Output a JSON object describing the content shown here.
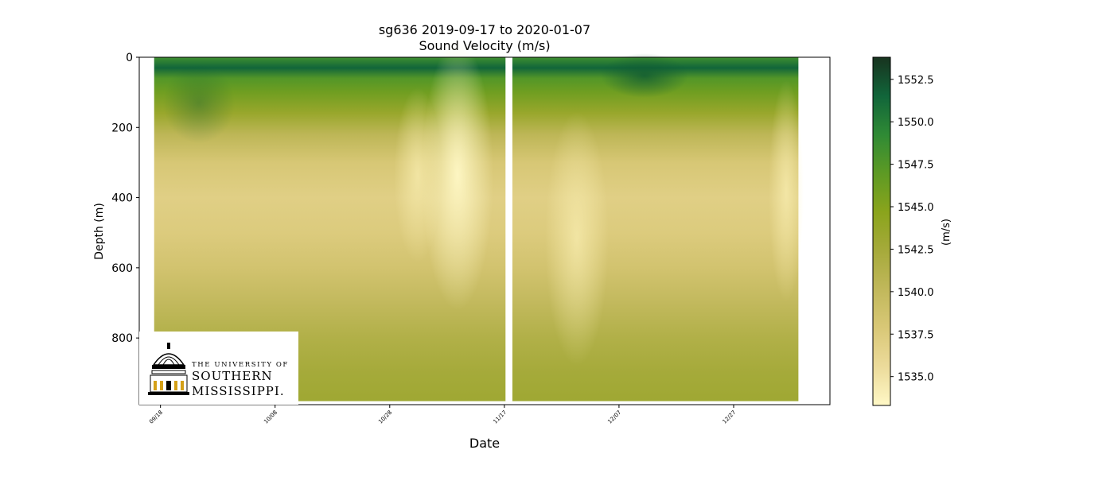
{
  "chart_data": {
    "type": "heatmap",
    "title": "sg636 2019-09-17 to 2020-01-07",
    "subtitle": "Sound Velocity (m/s)",
    "xlabel": "Date",
    "ylabel": "Depth (m)",
    "x_ticks": [
      "09/18",
      "10/08",
      "10/28",
      "11/17",
      "12/07",
      "12/27"
    ],
    "x_tick_days_since_start": [
      1,
      21,
      41,
      61,
      81,
      101
    ],
    "xlim_days": [
      -2.7,
      117.8
    ],
    "data_day_range": [
      -0.1,
      112.3
    ],
    "gap_days": [
      61.2,
      62.4
    ],
    "y_ticks": [
      0,
      200,
      400,
      600,
      800
    ],
    "ylim": [
      990,
      0
    ],
    "data_depth_max": 980,
    "colorbar": {
      "label": "(m/s)",
      "range": [
        1533.3,
        1553.8
      ],
      "ticks": [
        "1535.0",
        "1537.5",
        "1540.0",
        "1542.5",
        "1545.0",
        "1547.5",
        "1550.0",
        "1552.5"
      ],
      "tick_values": [
        1535.0,
        1537.5,
        1540.0,
        1542.5,
        1545.0,
        1547.5,
        1550.0,
        1552.5
      ],
      "colormap": [
        "#fff8c6",
        "#ecdb9b",
        "#d9c877",
        "#c1b85b",
        "#a6aa3b",
        "#8aa41c",
        "#5d9a24",
        "#2f8a35",
        "#11653a",
        "#18331f"
      ]
    },
    "depth_profile": [
      {
        "depth": 0,
        "value": 1548.5
      },
      {
        "depth": 30,
        "value": 1551.5
      },
      {
        "depth": 60,
        "value": 1547.5
      },
      {
        "depth": 100,
        "value": 1546.0
      },
      {
        "depth": 160,
        "value": 1543.5
      },
      {
        "depth": 220,
        "value": 1540.5
      },
      {
        "depth": 300,
        "value": 1538.0
      },
      {
        "depth": 400,
        "value": 1537.0
      },
      {
        "depth": 500,
        "value": 1537.5
      },
      {
        "depth": 600,
        "value": 1538.5
      },
      {
        "depth": 700,
        "value": 1540.0
      },
      {
        "depth": 800,
        "value": 1541.5
      },
      {
        "depth": 900,
        "value": 1542.5
      },
      {
        "depth": 980,
        "value": 1543.0
      }
    ]
  },
  "logo": {
    "line1": "THE UNIVERSITY OF",
    "line2": "SOUTHERN",
    "line3": "MISSISSIPPI."
  }
}
